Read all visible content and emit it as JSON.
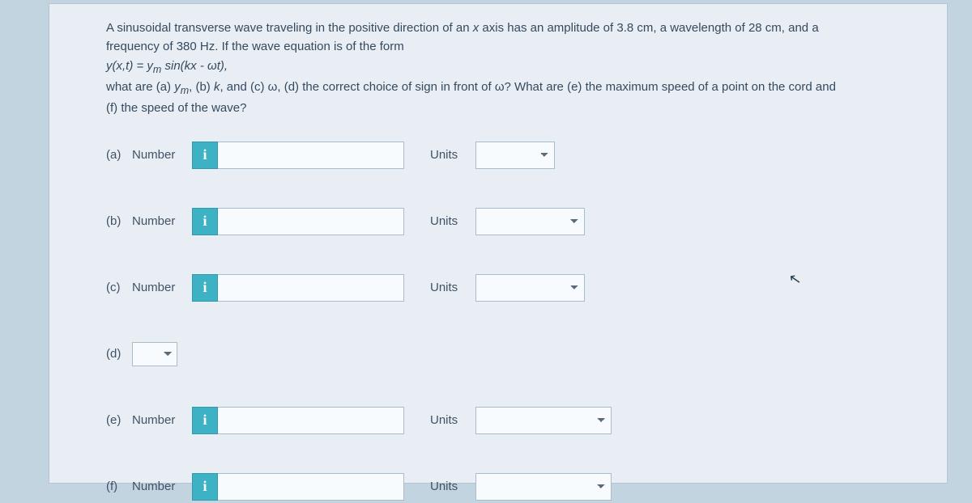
{
  "problem": {
    "line1_a": "A sinusoidal transverse wave traveling in the positive direction of an ",
    "line1_b": "x",
    "line1_c": " axis has an amplitude of 3.8 cm, a wavelength of 28 cm, and a",
    "line2": "frequency of 380 Hz. If the wave equation is of the form",
    "line3_a": "y(x,t) = y",
    "line3_b": "m",
    "line3_c": " sin(kx - ωt),",
    "line4_a": "what are (a) ",
    "line4_b": "y",
    "line4_c": "m",
    "line4_d": ", (b)  ",
    "line4_e": "k",
    "line4_f": ", and (c)  ω, (d) the correct choice of sign in front of ω? What are (e) the maximum speed of a point on the cord and",
    "line5": "(f) the speed of the wave?"
  },
  "parts": {
    "a": {
      "label": "(a)",
      "numLabel": "Number",
      "info": "i",
      "unitsLabel": "Units"
    },
    "b": {
      "label": "(b)",
      "numLabel": "Number",
      "info": "i",
      "unitsLabel": "Units"
    },
    "c": {
      "label": "(c)",
      "numLabel": "Number",
      "info": "i",
      "unitsLabel": "Units"
    },
    "d": {
      "label": "(d)"
    },
    "e": {
      "label": "(e)",
      "numLabel": "Number",
      "info": "i",
      "unitsLabel": "Units"
    },
    "f": {
      "label": "(f)",
      "numLabel": "Number",
      "info": "i",
      "unitsLabel": "Units"
    }
  }
}
